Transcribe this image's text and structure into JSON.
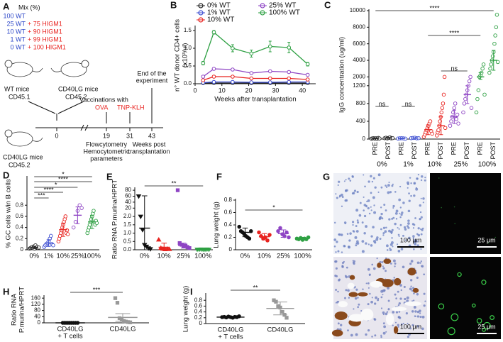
{
  "panel_a": {
    "panel": "A",
    "mix_title": "Mix (%)",
    "mix": [
      {
        "wt": "100 WT"
      },
      {
        "wt": "25 WT",
        "higm": "+ 75 HIGM1"
      },
      {
        "wt": "10 WT",
        "higm": "+ 90 HIGM1"
      },
      {
        "wt": "1 WT",
        "higm": "+ 99 HIGM1"
      },
      {
        "wt": "0 WT",
        "higm": "+ 100 HIGM1"
      }
    ],
    "donor1": [
      "WT mice",
      "CD45.1"
    ],
    "donor2": [
      "CD40LG mice",
      "CD45.2"
    ],
    "recipient": [
      "CD40LG mice",
      "CD45.2"
    ],
    "timeline": {
      "t0": "0",
      "t19": "19",
      "t31": "31",
      "t43": "43",
      "vacc": "Vaccinations with",
      "ova": "OVA",
      "tnp": "TNP-KLH",
      "end": [
        "End of the",
        "experiment"
      ],
      "flow": [
        "Flowcytometry",
        "Hemocytometric",
        "parameters"
      ],
      "weeks": [
        "Weeks post",
        "transplantation"
      ]
    }
  },
  "panel_g": {
    "panel": "G",
    "scale_bars": [
      "100 μm",
      "25 μm",
      "100 μm",
      "25 μm"
    ]
  },
  "chart_data": [
    {
      "panel": "B",
      "type": "line",
      "ylabel": [
        "n° WT donor CD4+ cells",
        "(x10³/ul)"
      ],
      "xlabel": "Weeks after transplantation",
      "x": [
        3,
        7,
        14,
        21,
        28,
        35,
        42
      ],
      "xlim": [
        0,
        45
      ],
      "xticks": [
        0,
        10,
        20,
        30,
        40
      ],
      "ylim": [
        0,
        1.6
      ],
      "yticks": [
        {
          "value": 0,
          "label": "0.0"
        },
        0.5,
        {
          "value": 1,
          "label": "1.0"
        },
        1.5
      ],
      "series": [
        {
          "name": "0% WT",
          "color": "#222222",
          "values": [
            0.02,
            0.02,
            0.02,
            0.02,
            0.02,
            0.02,
            0.02
          ]
        },
        {
          "name": "1% WT",
          "color": "#3a4bd0",
          "values": [
            0.03,
            0.05,
            0.05,
            0.04,
            0.04,
            0.05,
            0.05
          ]
        },
        {
          "name": "10% WT",
          "color": "#e8231f",
          "values": [
            0.1,
            0.2,
            0.2,
            0.15,
            0.15,
            0.15,
            0.12
          ]
        },
        {
          "name": "25% WT",
          "color": "#8e44c4",
          "values": [
            0.2,
            0.42,
            0.4,
            0.3,
            0.35,
            0.33,
            0.25
          ]
        },
        {
          "name": "100% WT",
          "color": "#2ea043",
          "values": [
            0.58,
            1.45,
            1.0,
            0.85,
            1.05,
            1.02,
            0.55
          ],
          "errors": [
            0.05,
            0.05,
            0.1,
            0.1,
            0.15,
            0.15,
            0.05
          ]
        }
      ]
    },
    {
      "panel": "C",
      "type": "dot",
      "ylabel": [
        "IgG concentration (ug/ml)"
      ],
      "categories": [
        "PRE",
        "POST",
        "PRE",
        "POST",
        "PRE",
        "POST",
        "PRE",
        "POST",
        "PRE",
        "POST"
      ],
      "groups": [
        "0%",
        "1%",
        "10%",
        "25%",
        "100%"
      ],
      "colors": [
        "#222222",
        "#222222",
        "#3a4bd0",
        "#3a4bd0",
        "#e8231f",
        "#e8231f",
        "#8e44c4",
        "#8e44c4",
        "#2ea043",
        "#2ea043"
      ],
      "markers": [
        "circle-open",
        "circle-open",
        "circle-open",
        "circle-open",
        "circle-open",
        "circle-open",
        "circle-open",
        "circle-open",
        "circle-open",
        "circle-open"
      ],
      "ylim": [
        0,
        10000
      ],
      "ybreak": [
        1300,
        1900
      ],
      "yticks": [
        0,
        400,
        800,
        1200,
        2000,
        4000,
        6000,
        8000,
        10000
      ],
      "values": [
        [
          10,
          15,
          20,
          12,
          18,
          8,
          25,
          14
        ],
        [
          20,
          30,
          15,
          25,
          40,
          18,
          22
        ],
        [
          12,
          18,
          20,
          15,
          10
        ],
        [
          20,
          25,
          30,
          18,
          22
        ],
        [
          50,
          100,
          150,
          200,
          250,
          300,
          350,
          400,
          180,
          120
        ],
        [
          80,
          150,
          200,
          300,
          400,
          500,
          600,
          700,
          800,
          1000,
          2000,
          250
        ],
        [
          300,
          400,
          500,
          600,
          700,
          800,
          450,
          550,
          350
        ],
        [
          600,
          800,
          900,
          1000,
          1100,
          1200,
          1300,
          2000,
          700
        ],
        [
          600,
          900,
          1100,
          2000,
          2200,
          2500,
          3000,
          3500,
          1000
        ],
        [
          2500,
          3000,
          3500,
          4000,
          4500,
          5000,
          6000,
          7000,
          8000,
          9500,
          3800
        ]
      ],
      "mean": [
        15,
        25,
        15,
        23,
        210,
        300,
        500,
        1000,
        2000,
        4000
      ],
      "sd": [
        5,
        8,
        4,
        5,
        110,
        200,
        150,
        200,
        500,
        1200
      ],
      "annotations": [
        "ns",
        "ns",
        "ns",
        "****",
        "****"
      ]
    },
    {
      "panel": "D",
      "type": "dot",
      "ylabel": [
        "% GC cells w/in B cells"
      ],
      "categories": [
        "0%",
        "1%",
        "10%",
        "25%",
        "100%"
      ],
      "colors": [
        "#222222",
        "#3a4bd0",
        "#e8231f",
        "#8e44c4",
        "#2ea043"
      ],
      "markers": [
        "circle-open",
        "circle-open",
        "circle-open",
        "circle-open",
        "circle-open"
      ],
      "ylim": [
        0,
        1.3
      ],
      "yticks": [
        0,
        0.2,
        0.4,
        0.6,
        0.8
      ],
      "values": [
        [
          0.02,
          0.03,
          0.04,
          0.05,
          0.03,
          0.06,
          0.02,
          0.08,
          0.04,
          0.05,
          0.03,
          0.04
        ],
        [
          0.05,
          0.08,
          0.1,
          0.12,
          0.15,
          0.2,
          0.25,
          0.1,
          0.08
        ],
        [
          0.15,
          0.2,
          0.25,
          0.3,
          0.35,
          0.4,
          0.45,
          0.5,
          0.55,
          0.6,
          0.3,
          0.35,
          0.28
        ],
        [
          0.4,
          0.5,
          0.7,
          0.8,
          0.75
        ],
        [
          0.3,
          0.35,
          0.4,
          0.45,
          0.5,
          0.55,
          0.6,
          0.65,
          0.7,
          0.5,
          0.45,
          0.52,
          0.48
        ]
      ],
      "mean": [
        0.04,
        0.12,
        0.36,
        0.62,
        0.5
      ],
      "sd": [
        0.02,
        0.06,
        0.12,
        0.15,
        0.12
      ],
      "annotations": [
        "*",
        "****",
        "*",
        "****",
        "***"
      ]
    },
    {
      "panel": "E",
      "type": "dot",
      "ylabel": [
        "Ratio RNA P.murina/HPRT"
      ],
      "categories": [
        "0%",
        "10%",
        "25%",
        "100%"
      ],
      "colors": [
        "#111111",
        "#e8231f",
        "#8e44c4",
        "#2ea043"
      ],
      "markers": [
        "triangle-down",
        "triangle",
        "square",
        "triangle-down"
      ],
      "ylim": [
        0,
        85
      ],
      "ybreak": [
        2.2,
        15
      ],
      "yticks": [
        {
          "value": 0,
          "label": "0.0"
        },
        0.5,
        {
          "value": 1,
          "label": "1.0"
        },
        1.5,
        {
          "value": 2,
          "label": "2.0"
        },
        20,
        40,
        60,
        80
      ],
      "values": [
        [
          60,
          2.0,
          1.2,
          0.3,
          0.2,
          0.1,
          0.05
        ],
        [
          0.6,
          0.1,
          0.05,
          0.02,
          0.05,
          0.03
        ],
        [
          80,
          0.4,
          0.3,
          0.2,
          0.25,
          0.15,
          0.1
        ],
        [
          0.02,
          0.02,
          0.03,
          0.02,
          0.02,
          0.03,
          0.02
        ]
      ],
      "mean": [
        1.3,
        0.15,
        0.25,
        0.02
      ],
      "sd": [
        60,
        0.25,
        0.15,
        0.01
      ],
      "annotations": [
        "**"
      ]
    },
    {
      "panel": "F",
      "type": "dot",
      "ylabel": [
        "Lung weight (g)"
      ],
      "categories": [
        "0%",
        "10%",
        "25%",
        "100%"
      ],
      "colors": [
        "#111111",
        "#e8231f",
        "#8e44c4",
        "#2ea043"
      ],
      "markers": [
        "circle",
        "circle",
        "circle",
        "circle"
      ],
      "ylim": [
        0,
        0.8
      ],
      "yticks": [
        0,
        0.2,
        0.4,
        0.6,
        0.8
      ],
      "values": [
        [
          0.37,
          0.3,
          0.28,
          0.25,
          0.22,
          0.2,
          0.18,
          0.3
        ],
        [
          0.28,
          0.22,
          0.18,
          0.2,
          0.15,
          0.24
        ],
        [
          0.3,
          0.35,
          0.25,
          0.22,
          0.28,
          0.2
        ],
        [
          0.18,
          0.17,
          0.19,
          0.16,
          0.18,
          0.17,
          0.2
        ]
      ],
      "mean": [
        0.28,
        0.21,
        0.26,
        0.18
      ],
      "sd": [
        0.07,
        0.05,
        0.06,
        0.02
      ],
      "annotations": [
        "*"
      ]
    },
    {
      "panel": "H",
      "type": "dot",
      "ylabel": [
        "Ratio RNA",
        "P.murina/HPRT"
      ],
      "categories": [
        [
          "CD40LG",
          "+ T cells"
        ],
        [
          "CD40LG"
        ]
      ],
      "colors": [
        "#111111",
        "#999999"
      ],
      "markers": [
        "circle",
        "square"
      ],
      "ylim": [
        0,
        170
      ],
      "yticks": [
        0,
        40,
        80,
        120,
        160
      ],
      "values": [
        [
          0,
          0,
          0,
          0,
          0,
          0,
          0,
          0
        ],
        [
          160,
          130,
          30,
          20,
          12,
          8,
          5,
          3
        ]
      ],
      "mean": [
        0,
        35
      ],
      "sd": [
        0,
        25
      ],
      "annotations": [
        "***"
      ]
    },
    {
      "panel": "I",
      "type": "dot",
      "ylabel": [
        "Lung weight (g)"
      ],
      "categories": [
        [
          "CD40LG",
          "+ T cells"
        ],
        [
          "CD40LG"
        ]
      ],
      "colors": [
        "#111111",
        "#999999"
      ],
      "markers": [
        "circle",
        "square"
      ],
      "ylim": [
        0,
        1.0
      ],
      "yticks": [
        0,
        0.2,
        0.4,
        0.6,
        0.8
      ],
      "values": [
        [
          0.22,
          0.23,
          0.21,
          0.24,
          0.22,
          0.2,
          0.23,
          0.22,
          0.25
        ],
        [
          0.8,
          0.75,
          0.6,
          0.55,
          0.4,
          0.3,
          0.2
        ]
      ],
      "mean": [
        0.22,
        0.52
      ],
      "sd": [
        0.02,
        0.22
      ],
      "annotations": [
        "**"
      ]
    }
  ]
}
